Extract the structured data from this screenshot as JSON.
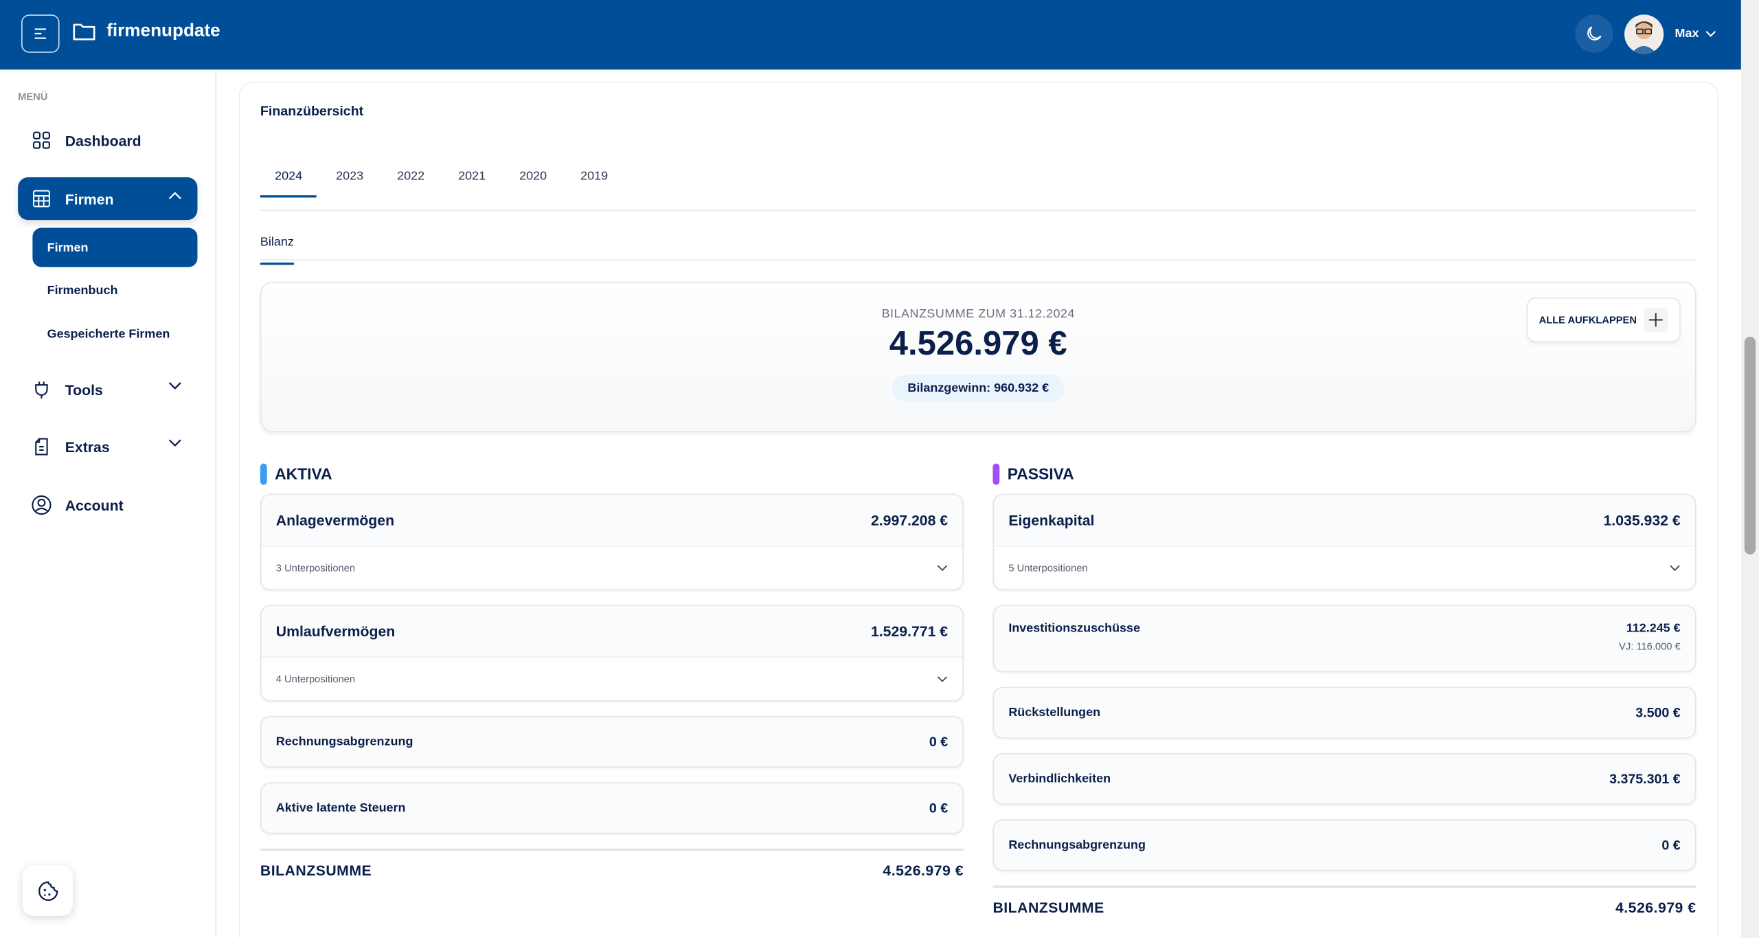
{
  "header": {
    "brand": "firmenupdate",
    "user": "Max",
    "colors": {
      "primary": "#004e98"
    }
  },
  "sidebar": {
    "menu_label": "MENÜ",
    "items": [
      {
        "label": "Dashboard",
        "icon": "grid-icon"
      },
      {
        "label": "Firmen",
        "icon": "table-icon",
        "expanded": true
      },
      {
        "label": "Tools",
        "icon": "plug-icon"
      },
      {
        "label": "Extras",
        "icon": "document-icon"
      },
      {
        "label": "Account",
        "icon": "user-circle-icon"
      }
    ],
    "sub_items": [
      {
        "label": "Firmen",
        "active": true
      },
      {
        "label": "Firmenbuch"
      },
      {
        "label": "Gespeicherte Firmen"
      }
    ]
  },
  "main": {
    "title": "Finanzübersicht",
    "year_tabs": [
      "2024",
      "2023",
      "2022",
      "2021",
      "2020",
      "2019"
    ],
    "active_year": "2024",
    "sub_tab": "Bilanz",
    "summary": {
      "label": "BILANZSUMME ZUM 31.12.2024",
      "value": "4.526.979 €",
      "profit": "Bilanzgewinn: 960.932 €",
      "expand_label": "ALLE AUFKLAPPEN"
    },
    "aktiva": {
      "title": "AKTIVA",
      "color": "#3b9cf0",
      "items": [
        {
          "name": "Anlagevermögen",
          "value": "2.997.208 €",
          "sub": "3 Unterpositionen"
        },
        {
          "name": "Umlaufvermögen",
          "value": "1.529.771 €",
          "sub": "4 Unterpositionen"
        },
        {
          "name": "Rechnungsabgrenzung",
          "value": "0 €"
        },
        {
          "name": "Aktive latente Steuern",
          "value": "0 €"
        }
      ],
      "total_label": "BILANZSUMME",
      "total": "4.526.979 €"
    },
    "passiva": {
      "title": "PASSIVA",
      "color": "#a64cf5",
      "items": [
        {
          "name": "Eigenkapital",
          "value": "1.035.932 €",
          "sub": "5 Unterpositionen"
        },
        {
          "name": "Investitionszuschüsse",
          "value": "112.245 €",
          "prev": "VJ: 116.000 €"
        },
        {
          "name": "Rückstellungen",
          "value": "3.500 €"
        },
        {
          "name": "Verbindlichkeiten",
          "value": "3.375.301 €"
        },
        {
          "name": "Rechnungsabgrenzung",
          "value": "0 €"
        }
      ],
      "total_label": "BILANZSUMME",
      "total": "4.526.979 €"
    }
  }
}
